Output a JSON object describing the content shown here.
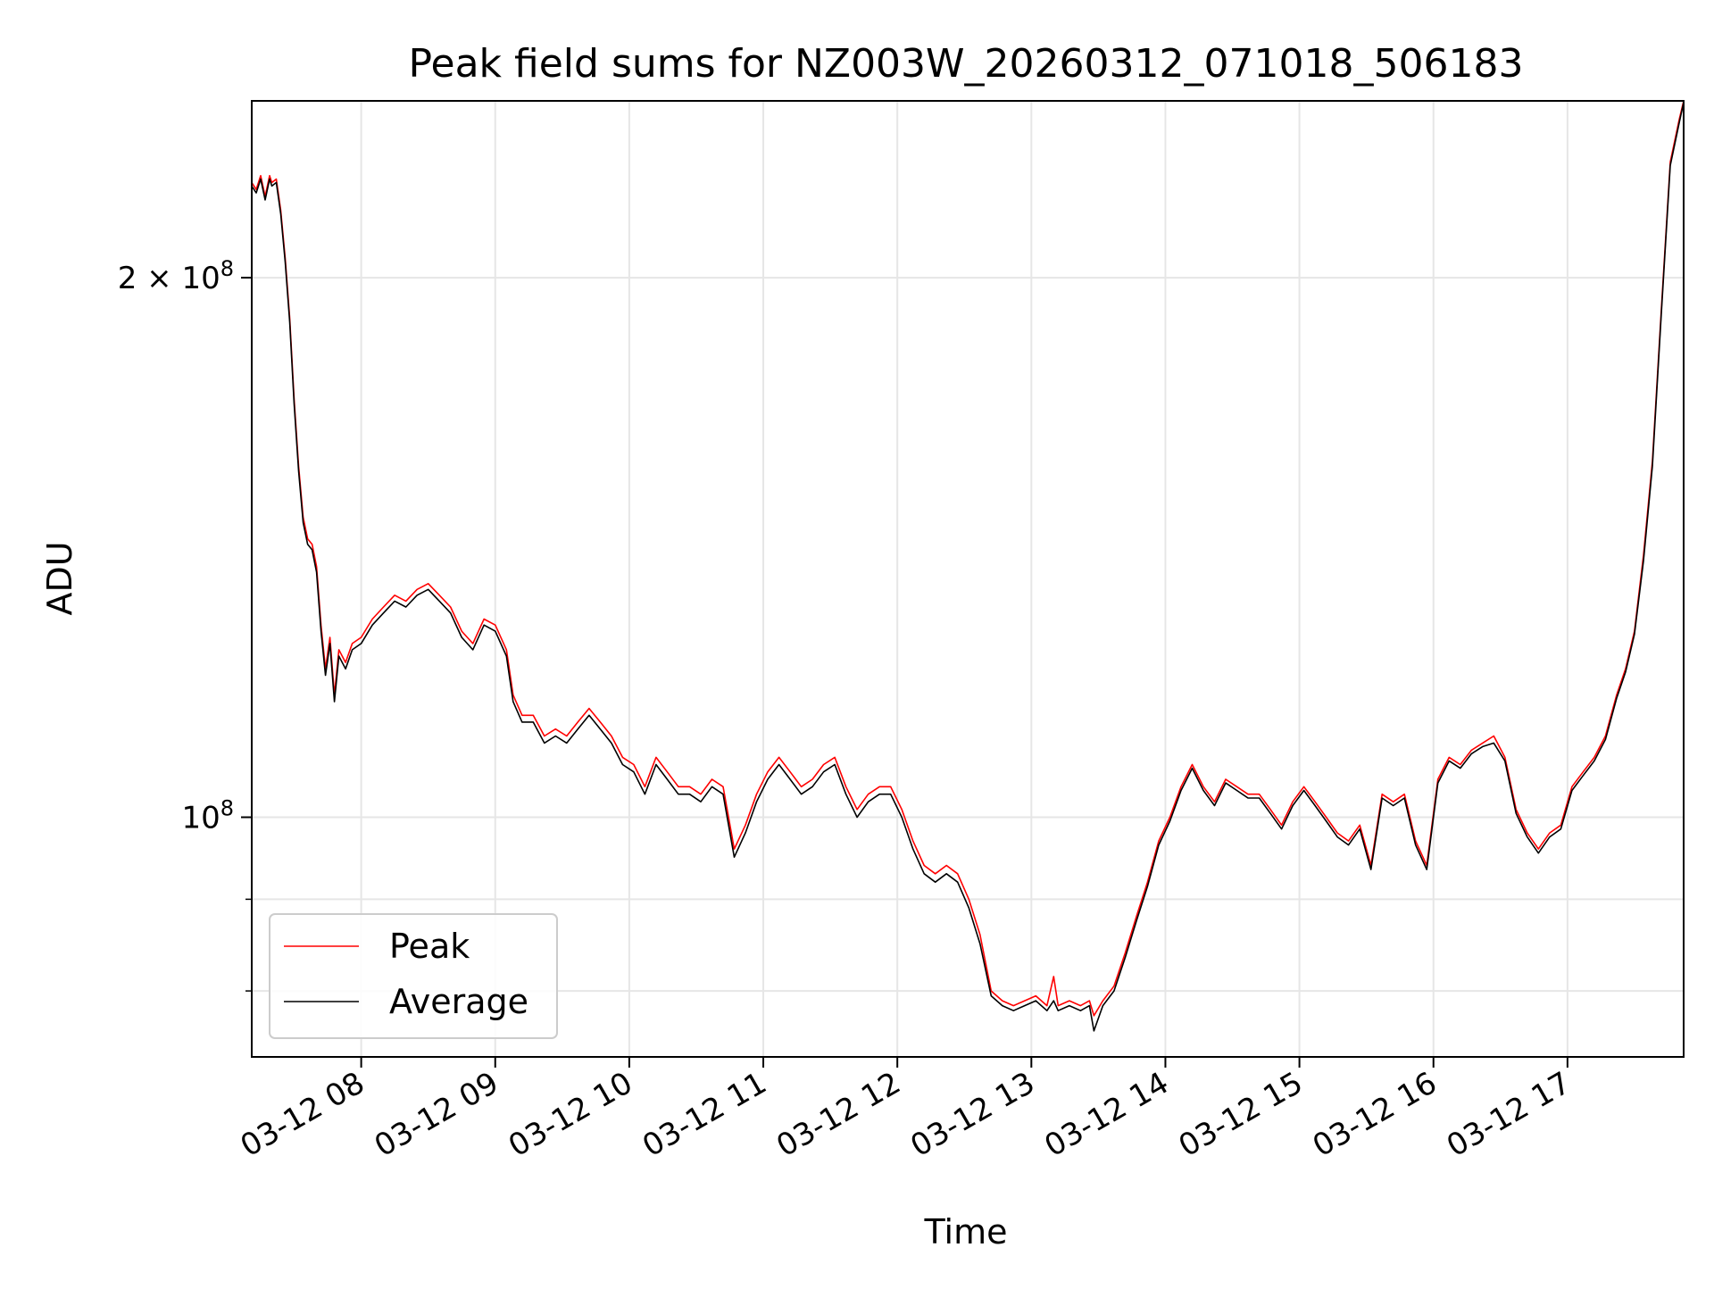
{
  "chart_data": {
    "type": "line",
    "title": "Peak field sums for NZ003W_20260312_071018_506183",
    "xlabel": "Time",
    "ylabel": "ADU",
    "y_scale": "log",
    "ylim": [
      73500000,
      251000000
    ],
    "xlim": [
      "03-12 07:11",
      "03-12 17:52"
    ],
    "grid": true,
    "legend_position": "lower-left",
    "x_ticks": [
      {
        "t": "03-12 08:00",
        "label": "03-12 08"
      },
      {
        "t": "03-12 09:00",
        "label": "03-12 09"
      },
      {
        "t": "03-12 10:00",
        "label": "03-12 10"
      },
      {
        "t": "03-12 11:00",
        "label": "03-12 11"
      },
      {
        "t": "03-12 12:00",
        "label": "03-12 12"
      },
      {
        "t": "03-12 13:00",
        "label": "03-12 13"
      },
      {
        "t": "03-12 14:00",
        "label": "03-12 14"
      },
      {
        "t": "03-12 15:00",
        "label": "03-12 15"
      },
      {
        "t": "03-12 16:00",
        "label": "03-12 16"
      },
      {
        "t": "03-12 17:00",
        "label": "03-12 17"
      }
    ],
    "y_major_ticks": [
      {
        "value": 100000000,
        "base": "10",
        "exp": "8",
        "mantissa": ""
      },
      {
        "value": 200000000,
        "base": "10",
        "exp": "8",
        "mantissa": "2 × "
      }
    ],
    "y_minor_ticks": [
      80000000,
      90000000
    ],
    "series": [
      {
        "name": "Peak",
        "color": "#ff0000",
        "x": [
          "03-12 07:11",
          "03-12 07:13",
          "03-12 07:15",
          "03-12 07:17",
          "03-12 07:19",
          "03-12 07:20",
          "03-12 07:22",
          "03-12 07:24",
          "03-12 07:26",
          "03-12 07:28",
          "03-12 07:30",
          "03-12 07:32",
          "03-12 07:34",
          "03-12 07:36",
          "03-12 07:38",
          "03-12 07:40",
          "03-12 07:42",
          "03-12 07:44",
          "03-12 07:46",
          "03-12 07:48",
          "03-12 07:50",
          "03-12 07:53",
          "03-12 07:56",
          "03-12 08:00",
          "03-12 08:05",
          "03-12 08:10",
          "03-12 08:15",
          "03-12 08:20",
          "03-12 08:25",
          "03-12 08:30",
          "03-12 08:35",
          "03-12 08:40",
          "03-12 08:45",
          "03-12 08:50",
          "03-12 08:55",
          "03-12 09:00",
          "03-12 09:05",
          "03-12 09:08",
          "03-12 09:12",
          "03-12 09:17",
          "03-12 09:22",
          "03-12 09:27",
          "03-12 09:32",
          "03-12 09:37",
          "03-12 09:42",
          "03-12 09:47",
          "03-12 09:52",
          "03-12 09:57",
          "03-12 10:02",
          "03-12 10:07",
          "03-12 10:12",
          "03-12 10:17",
          "03-12 10:22",
          "03-12 10:27",
          "03-12 10:32",
          "03-12 10:37",
          "03-12 10:42",
          "03-12 10:47",
          "03-12 10:52",
          "03-12 10:57",
          "03-12 11:02",
          "03-12 11:07",
          "03-12 11:12",
          "03-12 11:17",
          "03-12 11:22",
          "03-12 11:27",
          "03-12 11:32",
          "03-12 11:37",
          "03-12 11:42",
          "03-12 11:47",
          "03-12 11:52",
          "03-12 11:57",
          "03-12 12:02",
          "03-12 12:07",
          "03-12 12:12",
          "03-12 12:17",
          "03-12 12:22",
          "03-12 12:27",
          "03-12 12:32",
          "03-12 12:37",
          "03-12 12:42",
          "03-12 12:47",
          "03-12 12:52",
          "03-12 12:57",
          "03-12 13:02",
          "03-12 13:07",
          "03-12 13:10",
          "03-12 13:12",
          "03-12 13:17",
          "03-12 13:22",
          "03-12 13:26",
          "03-12 13:28",
          "03-12 13:32",
          "03-12 13:37",
          "03-12 13:42",
          "03-12 13:47",
          "03-12 13:52",
          "03-12 13:57",
          "03-12 14:02",
          "03-12 14:07",
          "03-12 14:12",
          "03-12 14:17",
          "03-12 14:22",
          "03-12 14:27",
          "03-12 14:32",
          "03-12 14:37",
          "03-12 14:42",
          "03-12 14:47",
          "03-12 14:52",
          "03-12 14:57",
          "03-12 15:02",
          "03-12 15:07",
          "03-12 15:12",
          "03-12 15:17",
          "03-12 15:22",
          "03-12 15:27",
          "03-12 15:32",
          "03-12 15:37",
          "03-12 15:42",
          "03-12 15:47",
          "03-12 15:52",
          "03-12 15:57",
          "03-12 16:02",
          "03-12 16:07",
          "03-12 16:12",
          "03-12 16:17",
          "03-12 16:22",
          "03-12 16:27",
          "03-12 16:32",
          "03-12 16:37",
          "03-12 16:42",
          "03-12 16:47",
          "03-12 16:52",
          "03-12 16:57",
          "03-12 17:02",
          "03-12 17:07",
          "03-12 17:12",
          "03-12 17:17",
          "03-12 17:22",
          "03-12 17:26",
          "03-12 17:30",
          "03-12 17:34",
          "03-12 17:38",
          "03-12 17:42",
          "03-12 17:46",
          "03-12 17:50",
          "03-12 17:52"
        ],
        "values": [
          226000000,
          224000000,
          228000000,
          222000000,
          228000000,
          226000000,
          227000000,
          218000000,
          205000000,
          190000000,
          171000000,
          157000000,
          147000000,
          143000000,
          142000000,
          138000000,
          128000000,
          121000000,
          126000000,
          117000000,
          124000000,
          122000000,
          125000000,
          126000000,
          129000000,
          131000000,
          133000000,
          132000000,
          134000000,
          135000000,
          133000000,
          131000000,
          127000000,
          125000000,
          129000000,
          128000000,
          124000000,
          117000000,
          114000000,
          114000000,
          111000000,
          112000000,
          111000000,
          113000000,
          115000000,
          113000000,
          111000000,
          108000000,
          107000000,
          104000000,
          108000000,
          106000000,
          104000000,
          104000000,
          103000000,
          105000000,
          104000000,
          96000000,
          99000000,
          103000000,
          106000000,
          108000000,
          106000000,
          104000000,
          105000000,
          107000000,
          108000000,
          104000000,
          101000000,
          103000000,
          104000000,
          104000000,
          101000000,
          97000000,
          94000000,
          93000000,
          94000000,
          93000000,
          90000000,
          86000000,
          80000000,
          79000000,
          78500000,
          79000000,
          79500000,
          78500000,
          81500000,
          78500000,
          79000000,
          78500000,
          79000000,
          77500000,
          79000000,
          80500000,
          84000000,
          88000000,
          92000000,
          97000000,
          100000000,
          104000000,
          107000000,
          104000000,
          102000000,
          105000000,
          104000000,
          103000000,
          103000000,
          101000000,
          99000000,
          102000000,
          104000000,
          102000000,
          100000000,
          98000000,
          97000000,
          99000000,
          94000000,
          103000000,
          102000000,
          103000000,
          97000000,
          94000000,
          105000000,
          108000000,
          107000000,
          109000000,
          110000000,
          111000000,
          108000000,
          101000000,
          98000000,
          96000000,
          98000000,
          99000000,
          104000000,
          106000000,
          108000000,
          111000000,
          117000000,
          121000000,
          127000000,
          140000000,
          158000000,
          192000000,
          232000000,
          245000000,
          251000000
        ]
      },
      {
        "name": "Average",
        "color": "#000000",
        "x": [
          "03-12 07:11",
          "03-12 07:13",
          "03-12 07:15",
          "03-12 07:17",
          "03-12 07:19",
          "03-12 07:20",
          "03-12 07:22",
          "03-12 07:24",
          "03-12 07:26",
          "03-12 07:28",
          "03-12 07:30",
          "03-12 07:32",
          "03-12 07:34",
          "03-12 07:36",
          "03-12 07:38",
          "03-12 07:40",
          "03-12 07:42",
          "03-12 07:44",
          "03-12 07:46",
          "03-12 07:48",
          "03-12 07:50",
          "03-12 07:53",
          "03-12 07:56",
          "03-12 08:00",
          "03-12 08:05",
          "03-12 08:10",
          "03-12 08:15",
          "03-12 08:20",
          "03-12 08:25",
          "03-12 08:30",
          "03-12 08:35",
          "03-12 08:40",
          "03-12 08:45",
          "03-12 08:50",
          "03-12 08:55",
          "03-12 09:00",
          "03-12 09:05",
          "03-12 09:08",
          "03-12 09:12",
          "03-12 09:17",
          "03-12 09:22",
          "03-12 09:27",
          "03-12 09:32",
          "03-12 09:37",
          "03-12 09:42",
          "03-12 09:47",
          "03-12 09:52",
          "03-12 09:57",
          "03-12 10:02",
          "03-12 10:07",
          "03-12 10:12",
          "03-12 10:17",
          "03-12 10:22",
          "03-12 10:27",
          "03-12 10:32",
          "03-12 10:37",
          "03-12 10:42",
          "03-12 10:47",
          "03-12 10:52",
          "03-12 10:57",
          "03-12 11:02",
          "03-12 11:07",
          "03-12 11:12",
          "03-12 11:17",
          "03-12 11:22",
          "03-12 11:27",
          "03-12 11:32",
          "03-12 11:37",
          "03-12 11:42",
          "03-12 11:47",
          "03-12 11:52",
          "03-12 11:57",
          "03-12 12:02",
          "03-12 12:07",
          "03-12 12:12",
          "03-12 12:17",
          "03-12 12:22",
          "03-12 12:27",
          "03-12 12:32",
          "03-12 12:37",
          "03-12 12:42",
          "03-12 12:47",
          "03-12 12:52",
          "03-12 12:57",
          "03-12 13:02",
          "03-12 13:07",
          "03-12 13:10",
          "03-12 13:12",
          "03-12 13:17",
          "03-12 13:22",
          "03-12 13:26",
          "03-12 13:28",
          "03-12 13:32",
          "03-12 13:37",
          "03-12 13:42",
          "03-12 13:47",
          "03-12 13:52",
          "03-12 13:57",
          "03-12 14:02",
          "03-12 14:07",
          "03-12 14:12",
          "03-12 14:17",
          "03-12 14:22",
          "03-12 14:27",
          "03-12 14:32",
          "03-12 14:37",
          "03-12 14:42",
          "03-12 14:47",
          "03-12 14:52",
          "03-12 14:57",
          "03-12 15:02",
          "03-12 15:07",
          "03-12 15:12",
          "03-12 15:17",
          "03-12 15:22",
          "03-12 15:27",
          "03-12 15:32",
          "03-12 15:37",
          "03-12 15:42",
          "03-12 15:47",
          "03-12 15:52",
          "03-12 15:57",
          "03-12 16:02",
          "03-12 16:07",
          "03-12 16:12",
          "03-12 16:17",
          "03-12 16:22",
          "03-12 16:27",
          "03-12 16:32",
          "03-12 16:37",
          "03-12 16:42",
          "03-12 16:47",
          "03-12 16:52",
          "03-12 16:57",
          "03-12 17:02",
          "03-12 17:07",
          "03-12 17:12",
          "03-12 17:17",
          "03-12 17:22",
          "03-12 17:26",
          "03-12 17:30",
          "03-12 17:34",
          "03-12 17:38",
          "03-12 17:42",
          "03-12 17:46",
          "03-12 17:50",
          "03-12 17:52"
        ],
        "values": [
          225000000,
          223000000,
          227000000,
          221000000,
          227000000,
          225000000,
          226000000,
          217000000,
          204000000,
          189000000,
          170000000,
          156000000,
          146000000,
          142000000,
          141000000,
          137000000,
          127000000,
          120000000,
          125000000,
          116000000,
          123000000,
          121000000,
          124000000,
          125000000,
          128000000,
          130000000,
          132000000,
          131000000,
          133000000,
          134000000,
          132000000,
          130000000,
          126000000,
          124000000,
          128000000,
          127000000,
          123000000,
          116000000,
          113000000,
          113000000,
          110000000,
          111000000,
          110000000,
          112000000,
          114000000,
          112000000,
          110000000,
          107000000,
          106000000,
          103000000,
          107000000,
          105000000,
          103000000,
          103000000,
          102000000,
          104000000,
          103000000,
          95000000,
          98000000,
          102000000,
          105000000,
          107000000,
          105000000,
          103000000,
          104000000,
          106000000,
          107000000,
          103000000,
          100000000,
          102000000,
          103000000,
          103000000,
          100000000,
          96000000,
          93000000,
          92000000,
          93000000,
          92000000,
          89000000,
          85000000,
          79500000,
          78500000,
          78000000,
          78500000,
          79000000,
          78000000,
          79000000,
          78000000,
          78500000,
          78000000,
          78500000,
          76000000,
          78500000,
          80000000,
          83500000,
          87500000,
          91500000,
          96500000,
          99500000,
          103500000,
          106500000,
          103500000,
          101500000,
          104500000,
          103500000,
          102500000,
          102500000,
          100500000,
          98500000,
          101500000,
          103500000,
          101500000,
          99500000,
          97500000,
          96500000,
          98500000,
          93500000,
          102500000,
          101500000,
          102500000,
          96500000,
          93500000,
          104500000,
          107500000,
          106500000,
          108500000,
          109500000,
          110000000,
          107500000,
          100500000,
          97500000,
          95500000,
          97500000,
          98500000,
          103500000,
          105500000,
          107500000,
          110500000,
          116500000,
          120500000,
          126500000,
          139000000,
          157000000,
          191000000,
          231000000,
          244000000,
          250500000
        ]
      }
    ]
  }
}
